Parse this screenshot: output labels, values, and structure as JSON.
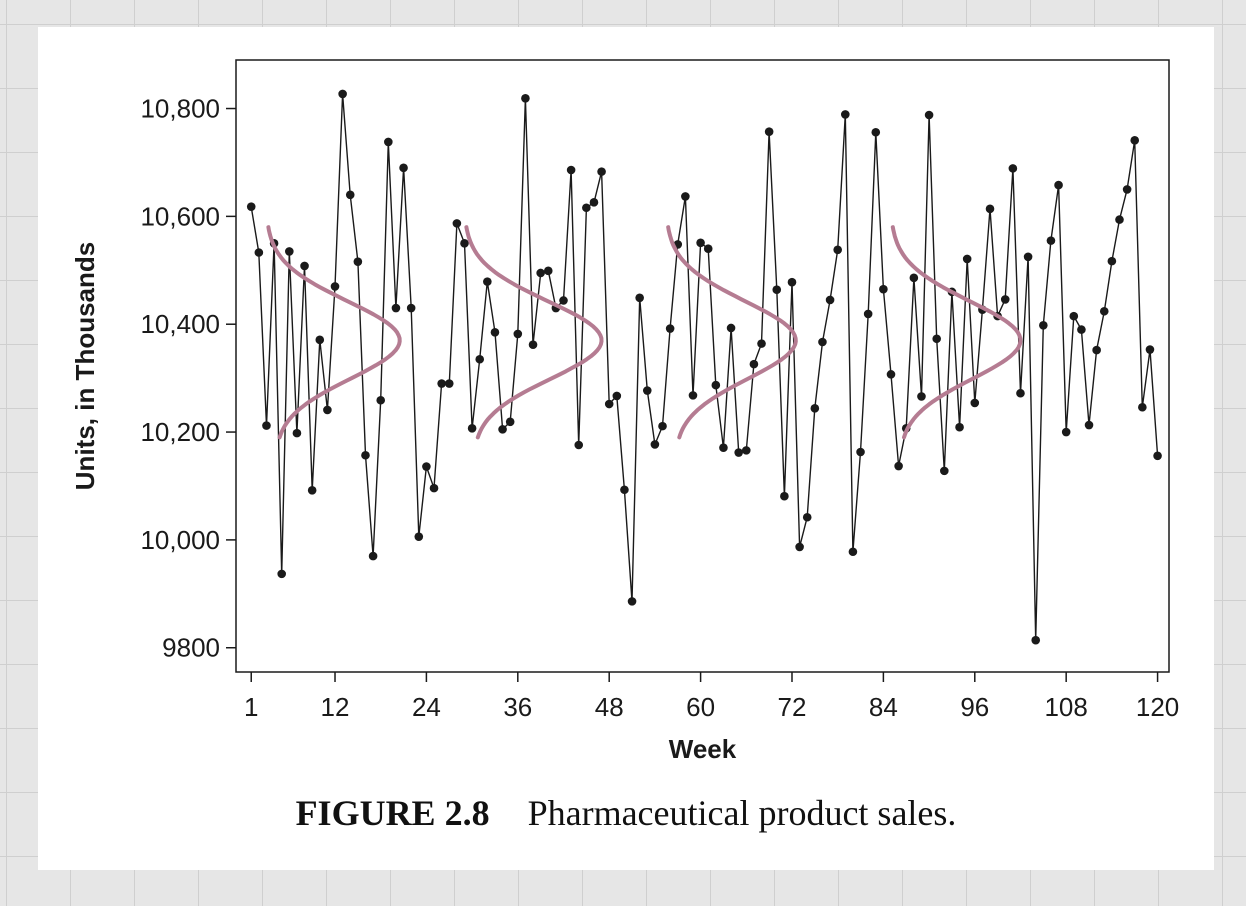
{
  "caption": {
    "label": "FIGURE 2.8",
    "text": "Pharmaceutical product sales."
  },
  "chart_data": {
    "type": "line",
    "title": "",
    "xlabel": "Week",
    "ylabel": "Units, in Thousands",
    "xlim": [
      -1,
      121.5
    ],
    "ylim": [
      9755,
      10890
    ],
    "xticks": [
      1,
      12,
      24,
      36,
      48,
      60,
      72,
      84,
      96,
      108,
      120
    ],
    "xtick_labels": [
      "1",
      "12",
      "24",
      "36",
      "48",
      "60",
      "72",
      "84",
      "96",
      "108",
      "120"
    ],
    "yticks": [
      9800,
      10000,
      10200,
      10400,
      10600,
      10800
    ],
    "ytick_labels": [
      "9800",
      "10,000",
      "10,200",
      "10,400",
      "10,600",
      "10,800"
    ],
    "grid": false,
    "series_color": "#1a1a1a",
    "overlay_color": "#b57c92",
    "series": [
      {
        "x": [
          1,
          2,
          3,
          4,
          5,
          6,
          7,
          8,
          9,
          10,
          11,
          12,
          13,
          14,
          15,
          16,
          17,
          18,
          19,
          20,
          21,
          22,
          23,
          24,
          25,
          26,
          27,
          28,
          29,
          30,
          31,
          32,
          33,
          34,
          35,
          36,
          37,
          38,
          39,
          40,
          41,
          42,
          43,
          44,
          45,
          46,
          47,
          48,
          49,
          50,
          51,
          52,
          53,
          54,
          55,
          56,
          57,
          58,
          59,
          60,
          61,
          62,
          63,
          64,
          65,
          66,
          67,
          68,
          69,
          70,
          71,
          72,
          73,
          74,
          75,
          76,
          77,
          78,
          79,
          80,
          81,
          82,
          83,
          84,
          85,
          86,
          87,
          88,
          89,
          90,
          91,
          92,
          93,
          94,
          95,
          96,
          97,
          98,
          99,
          100,
          101,
          102,
          103,
          104,
          105,
          106,
          107,
          108,
          109,
          110,
          111,
          112,
          113,
          114,
          115,
          116,
          117,
          118,
          119,
          120
        ],
        "values": [
          10618,
          10533,
          10212,
          10550,
          9937,
          10535,
          10198,
          10508,
          10092,
          10371,
          10241,
          10470,
          10827,
          10640,
          10516,
          10157,
          9970,
          10259,
          10738,
          10430,
          10690,
          10430,
          10006,
          10136,
          10096,
          10290,
          10290,
          10587,
          10550,
          10207,
          10335,
          10479,
          10385,
          10205,
          10219,
          10382,
          10819,
          10362,
          10495,
          10499,
          10430,
          10444,
          10686,
          10176,
          10616,
          10626,
          10683,
          10252,
          10267,
          10093,
          9886,
          10449,
          10277,
          10177,
          10211,
          10392,
          10548,
          10637,
          10268,
          10551,
          10540,
          10287,
          10171,
          10393,
          10162,
          10166,
          10326,
          10364,
          10757,
          10464,
          10081,
          10478,
          9987,
          10042,
          10244,
          10367,
          10445,
          10538,
          10789,
          9978,
          10163,
          10419,
          10756,
          10465,
          10307,
          10137,
          10207,
          10486,
          10266,
          10788,
          10373,
          10128,
          10460,
          10209,
          10521,
          10254,
          10427,
          10614,
          10415,
          10446,
          10689,
          10272,
          10525,
          9814,
          10398,
          10555,
          10658,
          10200,
          10415,
          10390,
          10213,
          10352,
          10424,
          10517,
          10594,
          10650,
          10741,
          10246,
          10353,
          10156
        ]
      }
    ],
    "overlay_curves": [
      {
        "center_x": 20.5,
        "top_x": 3,
        "bottom_x": 4
      },
      {
        "center_x": 47,
        "top_x": 29,
        "bottom_x": 30
      },
      {
        "center_x": 72.5,
        "top_x": 55.5,
        "bottom_x": 56.5
      },
      {
        "center_x": 102,
        "top_x": 85,
        "bottom_x": 86
      }
    ],
    "overlay_mean": 10370,
    "overlay_sd": 72,
    "overlay_top": 10580,
    "overlay_bottom": 10190
  }
}
